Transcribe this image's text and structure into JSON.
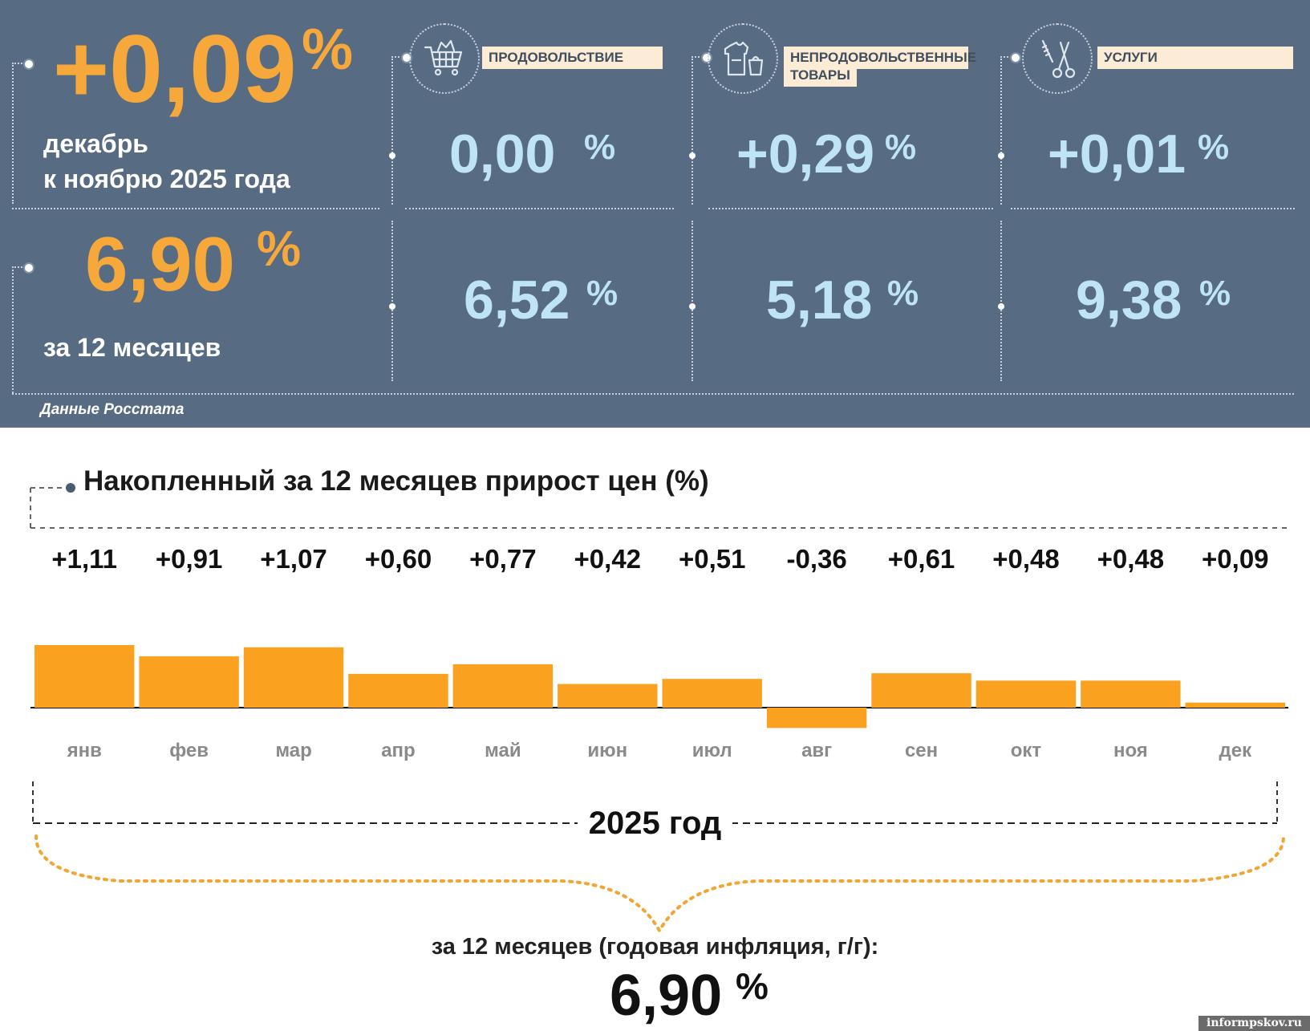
{
  "header": {
    "monthly": {
      "value": "+0,09",
      "pct": "%",
      "line1": "декабрь",
      "line2": "к ноябрю 2025 года"
    },
    "annual": {
      "value": "6,90",
      "pct": "%",
      "caption": "за 12 месяцев"
    },
    "categories": [
      {
        "label": "ПРОДОВОЛЬСТВИЕ",
        "icon": "shopping-cart-icon",
        "monthly": "0,00",
        "annual": "6,52"
      },
      {
        "label": "НЕПРОДОВОЛЬСТВЕННЫЕ ТОВАРЫ",
        "label_line1": "НЕПРОДОВОЛЬСТВЕННЫЕ",
        "label_line2": "ТОВАРЫ",
        "icon": "clothing-icon",
        "monthly": "+0,29",
        "annual": "5,18"
      },
      {
        "label": "УСЛУГИ",
        "icon": "scissors-comb-icon",
        "monthly": "+0,01",
        "annual": "9,38"
      }
    ],
    "pct_sign": "%",
    "source": "Данные Росстата"
  },
  "colors": {
    "panel": "#576c82",
    "orange": "#f6a83b",
    "light_blue": "#bfe4f5",
    "bar": "#faa21f",
    "label_bg": "#fcecd5"
  },
  "chart_data": {
    "type": "bar",
    "title": "Накопленный за 12 месяцев прирост цен (%)",
    "categories": [
      "янв",
      "фев",
      "мар",
      "апр",
      "май",
      "июн",
      "июл",
      "авг",
      "сен",
      "окт",
      "ноя",
      "дек"
    ],
    "values": [
      1.11,
      0.91,
      1.07,
      0.6,
      0.77,
      0.42,
      0.51,
      -0.36,
      0.61,
      0.48,
      0.48,
      0.09
    ],
    "value_labels": [
      "+1,11",
      "+0,91",
      "+1,07",
      "+0,60",
      "+0,77",
      "+0,42",
      "+0,51",
      "-0,36",
      "+0,61",
      "+0,48",
      "+0,48",
      "+0,09"
    ],
    "bar_color": "#faa21f"
  },
  "footer": {
    "year": "2025 год",
    "summary_label": "за 12 месяцев (годовая инфляция, г/г):",
    "summary_value": "6,90",
    "summary_pct": "%",
    "watermark": "informpskov.ru"
  }
}
